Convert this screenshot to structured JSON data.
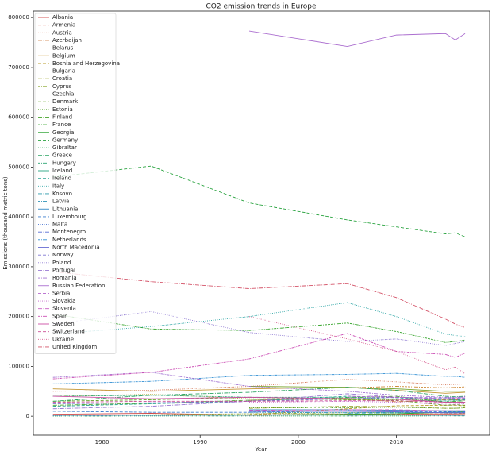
{
  "chart_data": {
    "type": "line",
    "title": "CO2 emission trends in Europe",
    "xlabel": "Year",
    "ylabel": "Emissions (thousand metric tons)",
    "x": [
      1975,
      1985,
      1995,
      2005,
      2010,
      2015,
      2016,
      2017
    ],
    "xlim": [
      1973,
      2019.5
    ],
    "xticks": [
      1980,
      1990,
      2000,
      2010
    ],
    "ylim": [
      -38000,
      813000
    ],
    "yticks": [
      0,
      100000,
      200000,
      300000,
      400000,
      500000,
      600000,
      700000,
      800000
    ],
    "grid": false,
    "legend": "upper left",
    "series": [
      {
        "name": "Albania",
        "color": "hsl(0,60%,55%)",
        "values": [
          4000,
          6000,
          2000,
          4000,
          4500,
          4500,
          4600,
          5000
        ]
      },
      {
        "name": "Armenia",
        "color": "hsl(8,60%,55%)",
        "values": [
          null,
          null,
          3000,
          4300,
          4200,
          4800,
          4900,
          5300
        ]
      },
      {
        "name": "Austria",
        "color": "hsl(16,60%,55%)",
        "values": [
          50000,
          52000,
          60000,
          74000,
          69000,
          63000,
          64000,
          65000
        ]
      },
      {
        "name": "Azerbaijan",
        "color": "hsl(25,60%,52%)",
        "values": [
          null,
          null,
          32000,
          36000,
          29000,
          33000,
          33000,
          32000
        ]
      },
      {
        "name": "Belarus",
        "color": "hsl(33,60%,50%)",
        "values": [
          null,
          null,
          57000,
          57000,
          60000,
          57000,
          58000,
          59000
        ]
      },
      {
        "name": "Belgium",
        "color": "hsl(41,60%,48%)",
        "values": [
          55000,
          50000,
          55000,
          58000,
          52000,
          46000,
          47000,
          48000
        ]
      },
      {
        "name": "Bosnia and Herzegovina",
        "color": "hsl(49,60%,45%)",
        "values": [
          null,
          null,
          3000,
          15000,
          21000,
          22000,
          22000,
          21000
        ]
      },
      {
        "name": "Bulgaria",
        "color": "hsl(57,60%,42%)",
        "values": [
          40000,
          44000,
          35000,
          33000,
          33000,
          34000,
          33000,
          35000
        ]
      },
      {
        "name": "Croatia",
        "color": "hsl(65,60%,40%)",
        "values": [
          null,
          null,
          16000,
          20000,
          19000,
          16000,
          16000,
          17000
        ]
      },
      {
        "name": "Cyprus",
        "color": "hsl(74,60%,40%)",
        "values": [
          2000,
          3000,
          5000,
          7000,
          8000,
          7000,
          7000,
          7000
        ]
      },
      {
        "name": "Czechia",
        "color": "hsl(82,60%,40%)",
        "values": [
          null,
          null,
          60000,
          58000,
          55000,
          50000,
          50000,
          50000
        ]
      },
      {
        "name": "Denmark",
        "color": "hsl(90,60%,40%)",
        "values": [
          30000,
          33000,
          38000,
          33000,
          32000,
          22000,
          23000,
          22000
        ]
      },
      {
        "name": "Estonia",
        "color": "hsl(98,60%,40%)",
        "values": [
          null,
          null,
          17000,
          17000,
          18000,
          16000,
          16000,
          17000
        ]
      },
      {
        "name": "Finland",
        "color": "hsl(106,60%,40%)",
        "values": [
          22000,
          26000,
          32000,
          37000,
          40000,
          28000,
          30000,
          28000
        ]
      },
      {
        "name": "France",
        "color": "hsl(115,60%,40%)",
        "values": [
          205000,
          175000,
          172000,
          187000,
          170000,
          148000,
          150000,
          153000
        ]
      },
      {
        "name": "Georgia",
        "color": "hsl(123,60%,40%)",
        "values": [
          null,
          null,
          2500,
          4000,
          5000,
          8000,
          8500,
          9000
        ]
      },
      {
        "name": "Germany",
        "color": "hsl(131,60%,40%)",
        "values": [
          480000,
          502000,
          428000,
          394000,
          380000,
          366000,
          368000,
          360000
        ]
      },
      {
        "name": "Gibraltar",
        "color": "hsl(139,60%,40%)",
        "values": [
          200,
          300,
          300,
          400,
          400,
          500,
          500,
          500
        ]
      },
      {
        "name": "Greece",
        "color": "hsl(147,60%,40%)",
        "values": [
          30000,
          42000,
          48000,
          58000,
          52000,
          40000,
          39000,
          40000
        ]
      },
      {
        "name": "Hungary",
        "color": "hsl(155,60%,40%)",
        "values": [
          40000,
          42000,
          38000,
          38000,
          34000,
          30000,
          31000,
          32000
        ]
      },
      {
        "name": "Iceland",
        "color": "hsl(164,60%,40%)",
        "values": [
          2000,
          2000,
          2200,
          2300,
          2200,
          2000,
          2000,
          2000
        ]
      },
      {
        "name": "Ireland",
        "color": "hsl(172,60%,40%)",
        "values": [
          20000,
          25000,
          30000,
          40000,
          37000,
          32000,
          33000,
          33000
        ]
      },
      {
        "name": "Italy",
        "color": "hsl(180,60%,40%)",
        "values": [
          165000,
          180000,
          200000,
          228000,
          200000,
          165000,
          162000,
          160000
        ]
      },
      {
        "name": "Kosovo",
        "color": "hsl(188,60%,42%)",
        "values": [
          null,
          null,
          null,
          6000,
          7000,
          8000,
          8000,
          8000
        ]
      },
      {
        "name": "Latvia",
        "color": "hsl(196,60%,45%)",
        "values": [
          null,
          null,
          8000,
          7000,
          8000,
          7000,
          7000,
          7000
        ]
      },
      {
        "name": "Lithuania",
        "color": "hsl(205,60%,48%)",
        "values": [
          null,
          null,
          13000,
          13000,
          12000,
          11000,
          11000,
          11000
        ]
      },
      {
        "name": "Luxembourg",
        "color": "hsl(213,60%,52%)",
        "values": [
          10000,
          8000,
          8000,
          11000,
          10000,
          9000,
          9000,
          9000
        ]
      },
      {
        "name": "Malta",
        "color": "hsl(221,60%,55%)",
        "values": [
          1000,
          1500,
          2000,
          2700,
          2700,
          1500,
          1500,
          1500
        ]
      },
      {
        "name": "Montenegro",
        "color": "hsl(229,60%,58%)",
        "values": [
          null,
          null,
          null,
          2000,
          2500,
          2300,
          2300,
          2300
        ]
      },
      {
        "name": "Netherlands",
        "color": "hsl(205,65%,50%)",
        "values": [
          65000,
          70000,
          82000,
          84000,
          86000,
          80000,
          80000,
          78000
        ]
      },
      {
        "name": "North Macedonia",
        "color": "hsl(237,55%,62%)",
        "values": [
          null,
          null,
          10000,
          10000,
          9000,
          7000,
          7000,
          7000
        ]
      },
      {
        "name": "Norway",
        "color": "hsl(245,50%,64%)",
        "values": [
          25000,
          27000,
          30000,
          35000,
          38000,
          37000,
          37000,
          36000
        ]
      },
      {
        "name": "Poland",
        "color": "hsl(254,50%,65%)",
        "values": [
          185000,
          210000,
          168000,
          150000,
          155000,
          142000,
          146000,
          150000
        ]
      },
      {
        "name": "Portugal",
        "color": "hsl(262,50%,65%)",
        "values": [
          15000,
          20000,
          30000,
          45000,
          38000,
          35000,
          37000,
          39000
        ]
      },
      {
        "name": "Romania",
        "color": "hsl(270,50%,63%)",
        "values": [
          78000,
          88000,
          60000,
          50000,
          42000,
          38000,
          38000,
          39000
        ]
      },
      {
        "name": "Russian Federation",
        "color": "hsl(278,50%,62%)",
        "values": [
          null,
          null,
          773000,
          742000,
          765000,
          768000,
          755000,
          768000
        ]
      },
      {
        "name": "Serbia",
        "color": "hsl(286,50%,60%)",
        "values": [
          null,
          null,
          null,
          40000,
          38000,
          35000,
          36000,
          37000
        ]
      },
      {
        "name": "Slovakia",
        "color": "hsl(295,50%,58%)",
        "values": [
          null,
          null,
          28000,
          30000,
          28000,
          24000,
          24000,
          25000
        ]
      },
      {
        "name": "Slovenia",
        "color": "hsl(303,50%,57%)",
        "values": [
          null,
          null,
          12000,
          13000,
          13000,
          11000,
          11000,
          11000
        ]
      },
      {
        "name": "Spain",
        "color": "hsl(311,55%,55%)",
        "values": [
          75000,
          88000,
          115000,
          166000,
          130000,
          124000,
          118000,
          127000
        ]
      },
      {
        "name": "Sweden",
        "color": "hsl(319,55%,55%)",
        "values": [
          40000,
          35000,
          38000,
          35000,
          34000,
          28000,
          28000,
          28000
        ]
      },
      {
        "name": "Switzerland",
        "color": "hsl(327,55%,55%)",
        "values": [
          28000,
          30000,
          30000,
          31000,
          31000,
          28000,
          28000,
          28000
        ]
      },
      {
        "name": "Ukraine",
        "color": "hsl(335,60%,58%)",
        "values": [
          null,
          null,
          200000,
          155000,
          130000,
          93000,
          99000,
          85000
        ]
      },
      {
        "name": "United Kingdom",
        "color": "hsl(350,60%,58%)",
        "values": [
          290000,
          270000,
          256000,
          266000,
          238000,
          195000,
          185000,
          178000
        ]
      }
    ]
  }
}
